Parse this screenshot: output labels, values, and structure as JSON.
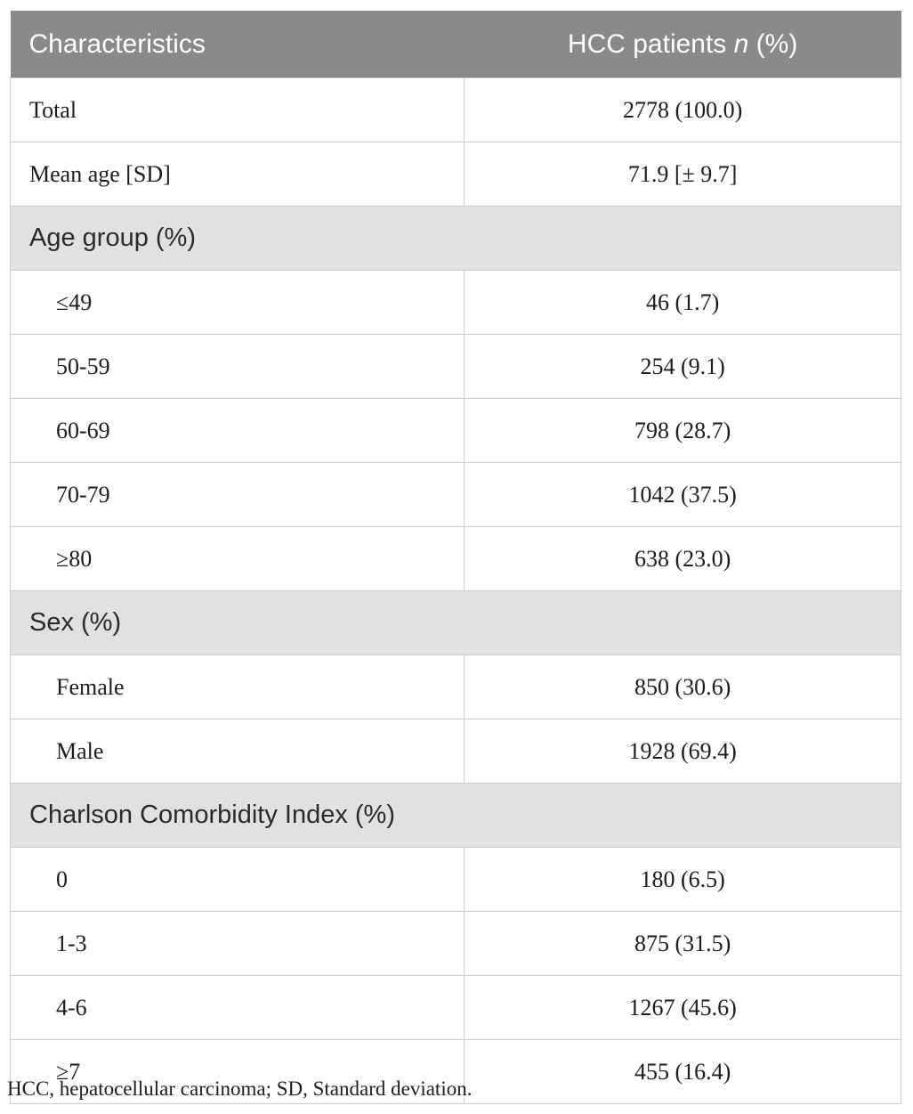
{
  "table": {
    "header": {
      "col1": "Characteristics",
      "col2_pre": "HCC patients ",
      "col2_italic": "n",
      "col2_post": " (%)"
    },
    "rows": [
      {
        "type": "data",
        "label": "Total",
        "value": "2778 (100.0)"
      },
      {
        "type": "data",
        "label": "Mean age [SD]",
        "value": "71.9 [± 9.7]"
      },
      {
        "type": "section",
        "label": "Age group (%)"
      },
      {
        "type": "data",
        "label": "≤49",
        "value": "46 (1.7)"
      },
      {
        "type": "data",
        "label": "50-59",
        "value": "254 (9.1)"
      },
      {
        "type": "data",
        "label": "60-69",
        "value": "798 (28.7)"
      },
      {
        "type": "data",
        "label": "70-79",
        "value": "1042 (37.5)"
      },
      {
        "type": "data",
        "label": "≥80",
        "value": "638 (23.0)"
      },
      {
        "type": "section",
        "label": "Sex (%)"
      },
      {
        "type": "data",
        "label": "Female",
        "value": "850 (30.6)"
      },
      {
        "type": "data",
        "label": "Male",
        "value": "1928 (69.4)"
      },
      {
        "type": "section",
        "label": "Charlson Comorbidity Index (%)"
      },
      {
        "type": "data",
        "label": "0",
        "value": "180 (6.5)"
      },
      {
        "type": "data",
        "label": "1-3",
        "value": "875 (31.5)"
      },
      {
        "type": "data",
        "label": "4-6",
        "value": "1267 (45.6)"
      },
      {
        "type": "data",
        "label": "≥7",
        "value": "455 (16.4)"
      }
    ],
    "footnote": "HCC, hepatocellular carcinoma; SD, Standard deviation."
  },
  "colors": {
    "header_bg": "#8a8a8a",
    "header_text": "#ffffff",
    "header_divider": "#a9a9a9",
    "section_bg": "#e1e1e1",
    "row_border": "#cccccc",
    "body_text": "#1d1d1d"
  }
}
